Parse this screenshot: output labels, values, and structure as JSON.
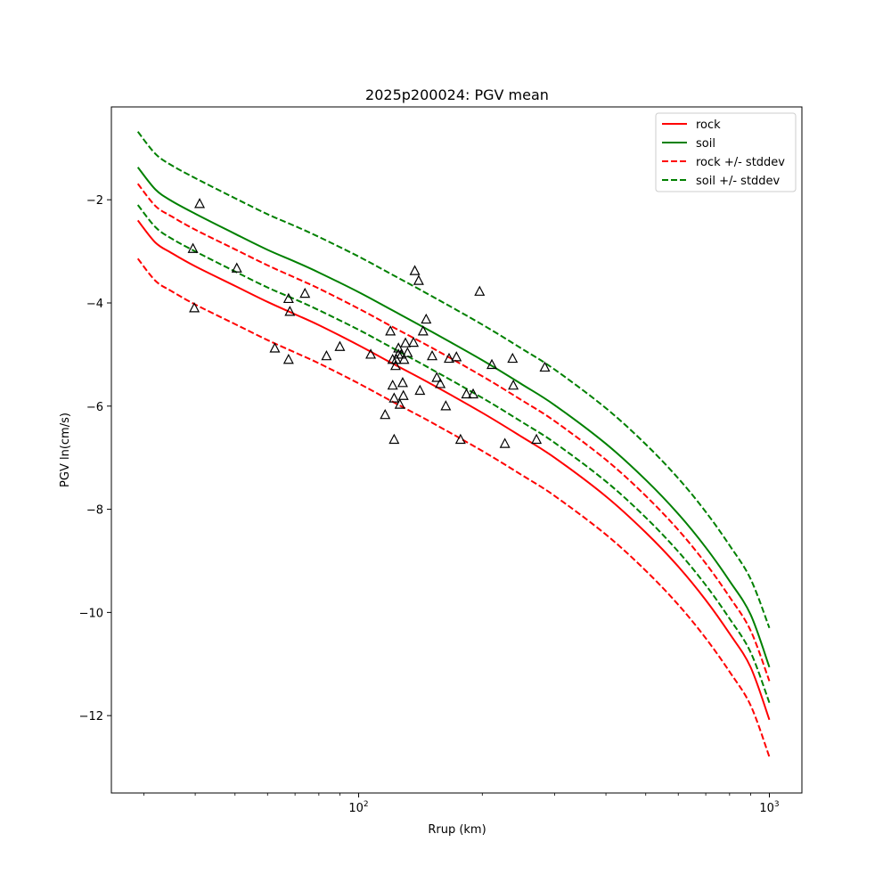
{
  "chart_data": {
    "type": "line",
    "title": "2025p200024: PGV mean",
    "xlabel": "Rrup (km)",
    "ylabel": "PGV ln(cm/s)",
    "x_scale": "log",
    "xlim": [
      25,
      1200
    ],
    "ylim": [
      -13.5,
      -0.2
    ],
    "y_ticks": [
      -12,
      -10,
      -8,
      -6,
      -4,
      -2
    ],
    "y_tick_labels": [
      "−12",
      "−10",
      "−8",
      "−6",
      "−4",
      "−2"
    ],
    "x_major_ticks": [
      100,
      1000
    ],
    "x_minor_ticks": [
      30,
      40,
      50,
      60,
      70,
      80,
      90,
      200,
      300,
      400,
      500,
      600,
      700,
      800,
      900
    ],
    "grid": false,
    "legend_position": "top-right",
    "series": [
      {
        "name": "rock",
        "color": "#ff0000",
        "dash": "solid",
        "x": [
          29,
          32,
          35,
          40,
          50,
          60,
          70,
          80,
          100,
          120,
          150,
          200,
          250,
          300,
          400,
          500,
          600,
          700,
          800,
          900,
          1000
        ],
        "y": [
          -2.4,
          -2.83,
          -3.03,
          -3.29,
          -3.67,
          -3.98,
          -4.22,
          -4.43,
          -4.82,
          -5.16,
          -5.57,
          -6.13,
          -6.6,
          -7.0,
          -7.75,
          -8.45,
          -9.11,
          -9.76,
          -10.41,
          -11.06,
          -12.08
        ]
      },
      {
        "name": "soil",
        "color": "#008000",
        "dash": "solid",
        "x": [
          29,
          32,
          35,
          40,
          50,
          60,
          70,
          80,
          100,
          120,
          150,
          200,
          250,
          300,
          400,
          500,
          600,
          700,
          800,
          900,
          1000
        ],
        "y": [
          -1.37,
          -1.8,
          -2.02,
          -2.27,
          -2.66,
          -2.97,
          -3.2,
          -3.41,
          -3.79,
          -4.13,
          -4.55,
          -5.11,
          -5.58,
          -5.98,
          -6.73,
          -7.43,
          -8.09,
          -8.74,
          -9.39,
          -10.04,
          -11.06
        ]
      },
      {
        "name": "rock +/- stddev",
        "color": "#ff0000",
        "dash": "dashed",
        "x": [
          29,
          32,
          35,
          40,
          50,
          60,
          70,
          80,
          100,
          120,
          150,
          200,
          250,
          300,
          400,
          500,
          600,
          700,
          800,
          900,
          1000
        ],
        "y": [
          -1.69,
          -2.12,
          -2.32,
          -2.58,
          -2.96,
          -3.27,
          -3.51,
          -3.72,
          -4.11,
          -4.45,
          -4.86,
          -5.42,
          -5.89,
          -6.29,
          -7.04,
          -7.74,
          -8.4,
          -9.05,
          -9.7,
          -10.35,
          -11.33
        ]
      },
      {
        "name": "rock +/- stddev (lower)",
        "color": "#ff0000",
        "dash": "dashed",
        "x": [
          29,
          32,
          35,
          40,
          50,
          60,
          70,
          80,
          100,
          120,
          150,
          200,
          250,
          300,
          400,
          500,
          600,
          700,
          800,
          900,
          1000
        ],
        "y": [
          -3.14,
          -3.57,
          -3.77,
          -4.03,
          -4.41,
          -4.72,
          -4.96,
          -5.17,
          -5.56,
          -5.9,
          -6.31,
          -6.87,
          -7.34,
          -7.74,
          -8.49,
          -9.19,
          -9.85,
          -10.5,
          -11.15,
          -11.8,
          -12.8
        ]
      },
      {
        "name": "soil +/- stddev",
        "color": "#008000",
        "dash": "dashed",
        "x": [
          29,
          32,
          35,
          40,
          50,
          60,
          70,
          80,
          100,
          120,
          150,
          200,
          250,
          300,
          400,
          500,
          600,
          700,
          800,
          900,
          1000
        ],
        "y": [
          -0.68,
          -1.11,
          -1.33,
          -1.58,
          -1.97,
          -2.28,
          -2.51,
          -2.72,
          -3.1,
          -3.44,
          -3.86,
          -4.42,
          -4.89,
          -5.29,
          -6.04,
          -6.74,
          -7.4,
          -8.05,
          -8.7,
          -9.35,
          -10.3
        ]
      },
      {
        "name": "soil +/- stddev (lower)",
        "color": "#008000",
        "dash": "dashed",
        "x": [
          29,
          32,
          35,
          40,
          50,
          60,
          70,
          80,
          100,
          120,
          150,
          200,
          250,
          300,
          400,
          500,
          600,
          700,
          800,
          900,
          1000
        ],
        "y": [
          -2.1,
          -2.53,
          -2.75,
          -3.0,
          -3.39,
          -3.7,
          -3.93,
          -4.14,
          -4.52,
          -4.86,
          -5.28,
          -5.84,
          -6.31,
          -6.71,
          -7.46,
          -8.16,
          -8.82,
          -9.47,
          -10.12,
          -10.77,
          -11.75
        ]
      }
    ],
    "legend": [
      {
        "label": "rock",
        "color": "#ff0000",
        "dash": "solid"
      },
      {
        "label": "soil",
        "color": "#008000",
        "dash": "solid"
      },
      {
        "label": "rock +/- stddev",
        "color": "#ff0000",
        "dash": "dashed"
      },
      {
        "label": "soil +/- stddev",
        "color": "#008000",
        "dash": "dashed"
      }
    ],
    "observations": {
      "marker": "triangle-open",
      "color": "#000000",
      "points": [
        [
          39.5,
          -2.95
        ],
        [
          39.8,
          -4.1
        ],
        [
          41,
          -2.08
        ],
        [
          50.5,
          -3.33
        ],
        [
          62.5,
          -4.88
        ],
        [
          67.5,
          -3.92
        ],
        [
          67.5,
          -5.1
        ],
        [
          68,
          -4.17
        ],
        [
          74,
          -3.82
        ],
        [
          83.5,
          -5.03
        ],
        [
          90,
          -4.85
        ],
        [
          107,
          -5.0
        ],
        [
          119.5,
          -4.55
        ],
        [
          121,
          -5.1
        ],
        [
          121,
          -5.6
        ],
        [
          122,
          -5.85
        ],
        [
          122,
          -6.65
        ],
        [
          123,
          -5.22
        ],
        [
          123.5,
          -5.1
        ],
        [
          125,
          -4.88
        ],
        [
          125,
          -5.0
        ],
        [
          126,
          -5.97
        ],
        [
          127,
          -5.0
        ],
        [
          128,
          -5.55
        ],
        [
          128.5,
          -5.8
        ],
        [
          129,
          -5.1
        ],
        [
          130,
          -4.78
        ],
        [
          131.5,
          -4.97
        ],
        [
          116,
          -6.17
        ],
        [
          136,
          -4.77
        ],
        [
          137,
          -3.38
        ],
        [
          140,
          -3.57
        ],
        [
          141,
          -5.7
        ],
        [
          143.5,
          -4.55
        ],
        [
          146,
          -4.32
        ],
        [
          151,
          -5.03
        ],
        [
          155,
          -5.45
        ],
        [
          158,
          -5.57
        ],
        [
          163,
          -6.0
        ],
        [
          166,
          -5.08
        ],
        [
          173,
          -5.05
        ],
        [
          177,
          -6.65
        ],
        [
          183,
          -5.77
        ],
        [
          190,
          -5.77
        ],
        [
          197,
          -3.78
        ],
        [
          211,
          -5.2
        ],
        [
          227,
          -6.73
        ],
        [
          237,
          -5.08
        ],
        [
          238,
          -5.6
        ],
        [
          271,
          -6.65
        ],
        [
          284,
          -5.25
        ]
      ]
    }
  }
}
